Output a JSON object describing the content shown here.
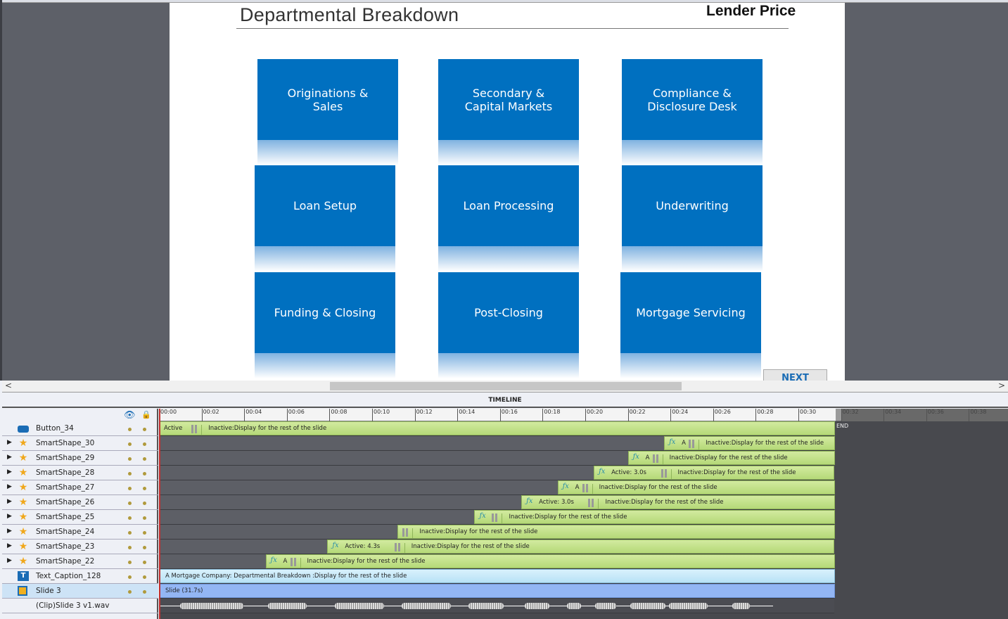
{
  "slide": {
    "title": "Departmental Breakdown",
    "logo": "Lender Price",
    "next_label": "NEXT",
    "tiles": [
      [
        "Originations & Sales",
        "Secondary & Capital Markets",
        "Compliance & Disclosure Desk"
      ],
      [
        "Loan Setup",
        "Loan Processing",
        "Underwriting"
      ],
      [
        "Funding & Closing",
        "Post-Closing",
        "Mortgage Servicing"
      ]
    ],
    "tile_color": "#0070c0"
  },
  "timeline": {
    "header": "TIMELINE",
    "end_label": "END",
    "ticks": [
      "00:00",
      "00:02",
      "00:04",
      "00:06",
      "00:08",
      "00:10",
      "00:12",
      "00:14",
      "00:16",
      "00:18",
      "00:20",
      "00:22",
      "00:24",
      "00:26",
      "00:28",
      "00:30",
      "00:32",
      "00:34",
      "00:36",
      "00:38"
    ],
    "slide_duration_s": 31.7,
    "layers": [
      {
        "name": "Button_34",
        "icon": "button",
        "expand": false,
        "start_s": 0,
        "active": "Active",
        "fx": false,
        "inactive": "Inactive:Display for the rest of the slide"
      },
      {
        "name": "SmartShape_30",
        "icon": "star",
        "expand": true,
        "start_s": 23.7,
        "active": "A",
        "fx": true,
        "inactive": "Inactive:Display for the rest of the slide"
      },
      {
        "name": "SmartShape_29",
        "icon": "star",
        "expand": true,
        "start_s": 22.0,
        "active": "A",
        "fx": true,
        "inactive": "Inactive:Display for the rest of the slide"
      },
      {
        "name": "SmartShape_28",
        "icon": "star",
        "expand": true,
        "start_s": 20.4,
        "active": "Active: 3.0s",
        "fx": true,
        "inactive": "Inactive:Display for the rest of the slide"
      },
      {
        "name": "SmartShape_27",
        "icon": "star",
        "expand": true,
        "start_s": 18.7,
        "active": "A",
        "fx": true,
        "inactive": "Inactive:Display for the rest of the slide"
      },
      {
        "name": "SmartShape_26",
        "icon": "star",
        "expand": true,
        "start_s": 17.0,
        "active": "Active: 3.0s",
        "fx": true,
        "inactive": "Inactive:Display for the rest of the slide"
      },
      {
        "name": "SmartShape_25",
        "icon": "star",
        "expand": true,
        "start_s": 14.8,
        "active": "",
        "fx": true,
        "inactive": "Inactive:Display for the rest of the slide"
      },
      {
        "name": "SmartShape_24",
        "icon": "star",
        "expand": true,
        "start_s": 11.2,
        "active": "",
        "fx": false,
        "inactive": "Inactive:Display for the rest of the slide"
      },
      {
        "name": "SmartShape_23",
        "icon": "star",
        "expand": true,
        "start_s": 7.9,
        "active": "Active: 4.3s",
        "fx": true,
        "inactive": "Inactive:Display for the rest of the slide"
      },
      {
        "name": "SmartShape_22",
        "icon": "star",
        "expand": true,
        "start_s": 5.0,
        "active": "A",
        "fx": true,
        "inactive": "Inactive:Display for the rest of the slide"
      }
    ],
    "caption": {
      "name": "Text_Caption_128",
      "text": "A Mortgage Company:  Departmental Breakdown :Display for the rest of the slide"
    },
    "slide_row": {
      "name": "Slide 3",
      "text": "Slide (31.7s)"
    },
    "audio": {
      "name": "(Clip)Slide 3 v1.wav"
    }
  }
}
